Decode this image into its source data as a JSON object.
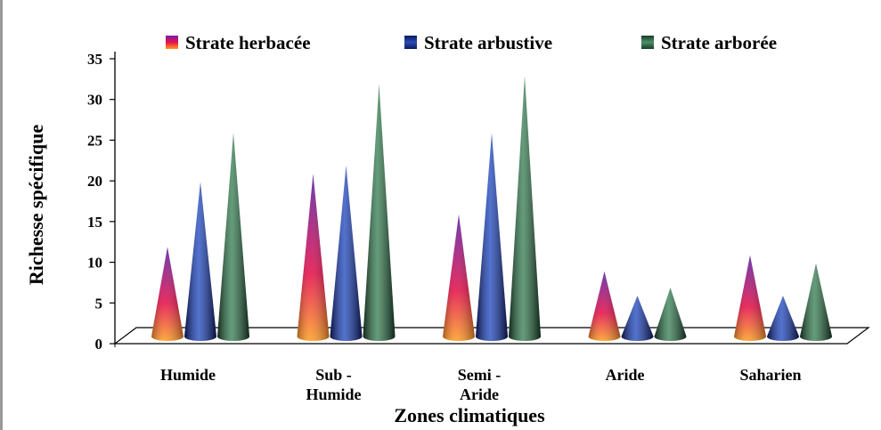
{
  "chart_data": {
    "type": "bar",
    "style": "3d-cone",
    "categories": [
      [
        "Humide"
      ],
      [
        "Sub -",
        "Humide"
      ],
      [
        "Semi -",
        "Aride"
      ],
      [
        "Aride"
      ],
      [
        "Saharien"
      ]
    ],
    "series": [
      {
        "name": "Strate herbacée",
        "values": [
          11,
          20,
          15,
          8,
          10
        ],
        "colors": {
          "top": "#5a1fa8",
          "mid": "#e8104a",
          "base": "#ffa024"
        }
      },
      {
        "name": "Strate arbustive",
        "values": [
          19,
          21,
          25,
          5,
          5
        ],
        "colors": {
          "light": "#3a5fc8",
          "dark": "#0a1a66"
        }
      },
      {
        "name": "Strate arborée",
        "values": [
          25,
          31,
          32,
          6,
          9
        ],
        "colors": {
          "light": "#4f8f68",
          "dark": "#163c26"
        }
      }
    ],
    "xlabel": "Zones climatiques",
    "ylabel": "Richesse spécifique",
    "ylim": [
      0,
      35
    ],
    "yticks": [
      "0",
      "5",
      "10",
      "15",
      "20",
      "25",
      "30",
      "35"
    ],
    "legend_position": "top",
    "grid": false
  }
}
